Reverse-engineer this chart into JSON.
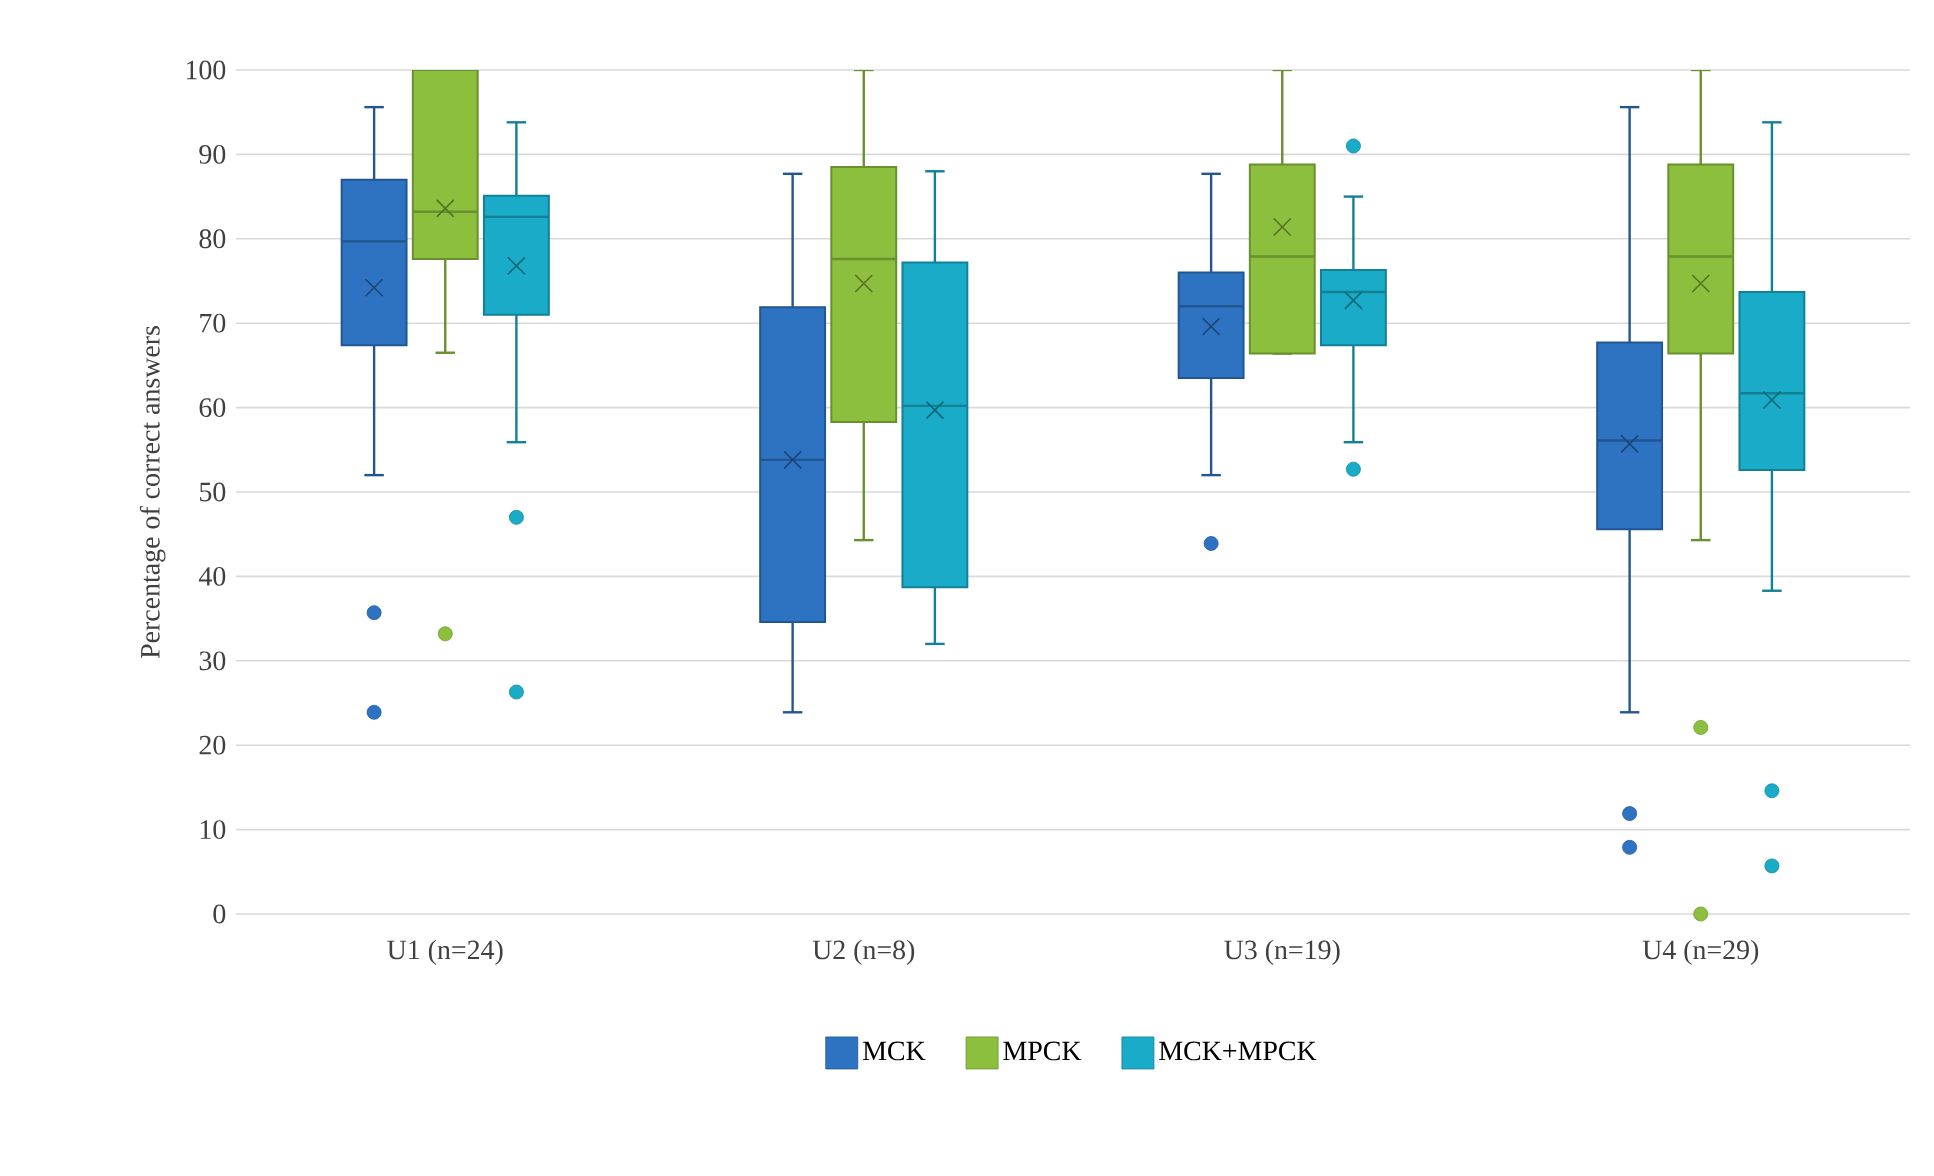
{
  "chart_data": {
    "type": "box",
    "ylabel": "Percentage of correct answers",
    "categories": [
      "U1 (n=24)",
      "U2 (n=8)",
      "U3 (n=19)",
      "U4 (n=29)"
    ],
    "ylim": [
      0,
      100
    ],
    "yticks": [
      0,
      10,
      20,
      30,
      40,
      50,
      60,
      70,
      80,
      90,
      100
    ],
    "grid": "y",
    "legend": "bottom",
    "series": [
      {
        "name": "MCK",
        "color": "#2e73c2",
        "boxes": [
          {
            "low": 52,
            "q1": 67.4,
            "median": 79.7,
            "q3": 87,
            "high": 95.6,
            "mean": 74.2,
            "outliers": [
              35.7,
              23.9
            ]
          },
          {
            "low": 23.9,
            "q1": 34.6,
            "median": 53.8,
            "q3": 71.9,
            "high": 87.7,
            "mean": 53.8
          },
          {
            "low": 52,
            "q1": 63.5,
            "median": 72,
            "q3": 76,
            "high": 87.7,
            "mean": 69.6,
            "outliers": [
              43.9
            ]
          },
          {
            "low": 23.9,
            "q1": 45.6,
            "median": 56.1,
            "q3": 67.7,
            "high": 95.6,
            "mean": 55.7,
            "outliers": [
              11.9,
              7.9
            ]
          }
        ]
      },
      {
        "name": "MPCK",
        "color": "#8dbf3e",
        "boxes": [
          {
            "low": 66.5,
            "q1": 77.6,
            "median": 83.2,
            "q3": 100,
            "high": 100,
            "mean": 83.6,
            "outliers": [
              33.2
            ]
          },
          {
            "low": 44.3,
            "q1": 58.3,
            "median": 77.6,
            "q3": 88.5,
            "high": 100,
            "mean": 74.7
          },
          {
            "low": 66.4,
            "q1": 66.4,
            "median": 77.9,
            "q3": 88.8,
            "high": 100,
            "mean": 81.4
          },
          {
            "low": 44.3,
            "q1": 66.4,
            "median": 77.9,
            "q3": 88.8,
            "high": 100,
            "mean": 74.7,
            "outliers": [
              22.1,
              0
            ]
          }
        ]
      },
      {
        "name": "MCK+MPCK",
        "color": "#19abc8",
        "boxes": [
          {
            "low": 55.9,
            "q1": 71,
            "median": 82.6,
            "q3": 85.1,
            "high": 93.8,
            "mean": 76.8,
            "outliers": [
              47,
              26.3
            ]
          },
          {
            "low": 32,
            "q1": 38.7,
            "median": 60.2,
            "q3": 77.2,
            "high": 88,
            "mean": 59.7
          },
          {
            "low": 55.9,
            "q1": 67.4,
            "median": 73.7,
            "q3": 76.3,
            "high": 85,
            "mean": 72.7,
            "outliers": [
              91,
              52.7
            ]
          },
          {
            "low": 38.3,
            "q1": 52.6,
            "median": 61.7,
            "q3": 73.7,
            "high": 93.8,
            "mean": 60.9,
            "outliers": [
              14.6,
              5.7
            ]
          }
        ]
      }
    ]
  }
}
